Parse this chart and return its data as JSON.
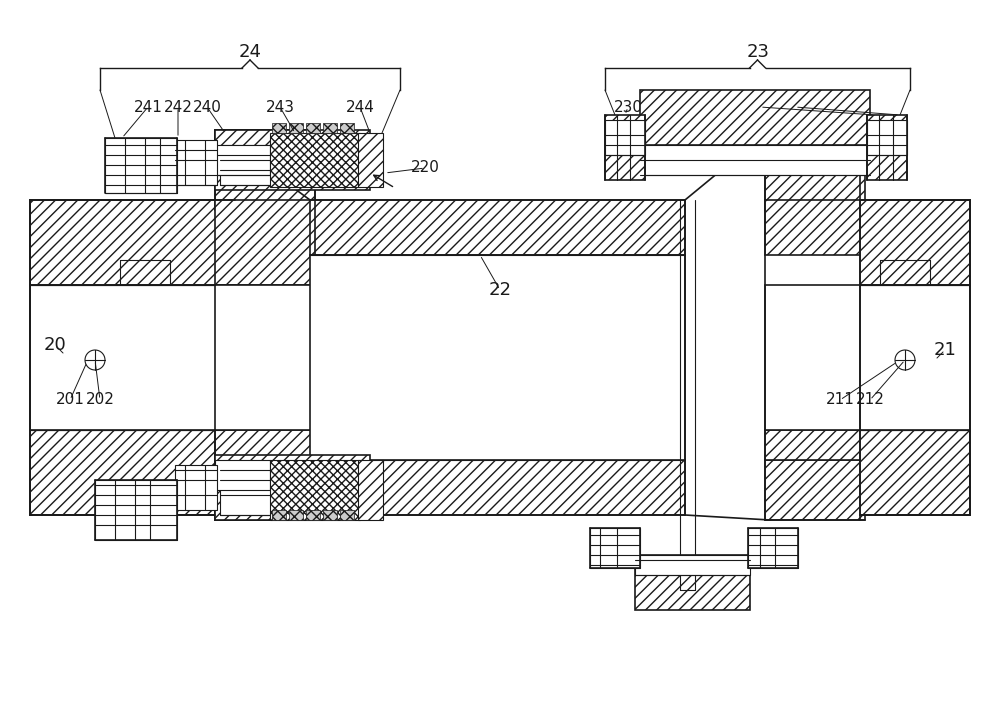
{
  "bg_color": "#ffffff",
  "lc": "#1a1a1a",
  "fig_width": 10.0,
  "fig_height": 7.23,
  "dpi": 100
}
